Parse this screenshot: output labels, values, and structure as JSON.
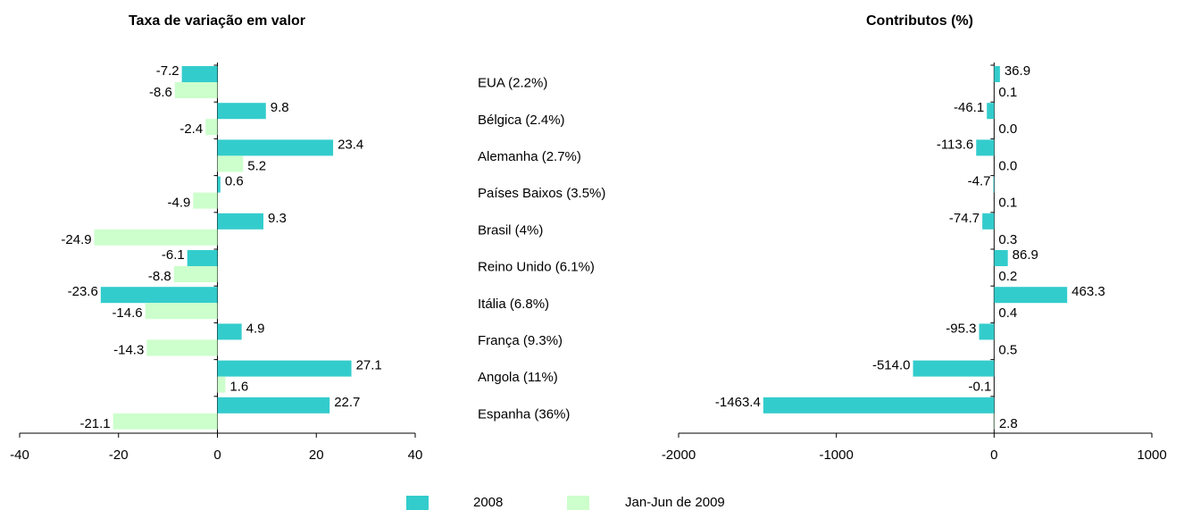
{
  "chart_data": [
    {
      "type": "bar",
      "orientation": "horizontal",
      "title": "Taxa de variação em valor",
      "categories": [
        "EUA (2.2%)",
        "Bélgica (2.4%)",
        "Alemanha (2.7%)",
        "Países Baixos  (3.5%)",
        "Brasil (4%)",
        "Reino Unido (6.1%)",
        "Itália (6.8%)",
        "França (9.3%)",
        "Angola (11%)",
        "Espanha (36%)"
      ],
      "series": [
        {
          "name": "2008",
          "color": "#33cccc",
          "label_color": "#2e8b22",
          "values": [
            -7.2,
            9.8,
            23.4,
            0.6,
            9.3,
            -6.1,
            -23.6,
            4.9,
            27.1,
            22.7
          ]
        },
        {
          "name": "Jan-Jun de 2009",
          "color": "#ccffcc",
          "label_color": "#8c8c8c",
          "values": [
            -8.6,
            -2.4,
            5.2,
            -4.9,
            -24.9,
            -8.8,
            -14.6,
            -14.3,
            1.6,
            -21.1
          ]
        }
      ],
      "xlim": [
        -40,
        40
      ],
      "xticks": [
        -40,
        -20,
        0,
        20,
        40
      ]
    },
    {
      "type": "bar",
      "orientation": "horizontal",
      "title": "Contributos (%)",
      "series": [
        {
          "color": "#33cccc",
          "label_color": "#2e8b22",
          "values": [
            36.9,
            -46.1,
            -113.6,
            -4.7,
            -74.7,
            86.9,
            463.3,
            -95.3,
            -514.0,
            -1463.4
          ],
          "value_labels": [
            "36.9",
            "-46.1",
            "-113.6",
            "-4.7",
            "-74.7",
            "86.9",
            "463.3",
            "-95.3",
            "-514.0",
            "-1463.4"
          ]
        },
        {
          "color": "#ccffcc",
          "label_color": "#8c8c8c",
          "values": [
            0.1,
            0.0,
            0.0,
            0.1,
            0.3,
            0.2,
            0.4,
            0.5,
            -0.1,
            2.8
          ],
          "value_labels": [
            "0.1",
            "0.0",
            "0.0",
            "0.1",
            "0.3",
            "0.2",
            "0.4",
            "0.5",
            "-0.1",
            "2.8"
          ]
        }
      ],
      "xlim": [
        -2000,
        1000
      ],
      "xticks": [
        -2000,
        -1000,
        0,
        1000
      ]
    }
  ]
}
